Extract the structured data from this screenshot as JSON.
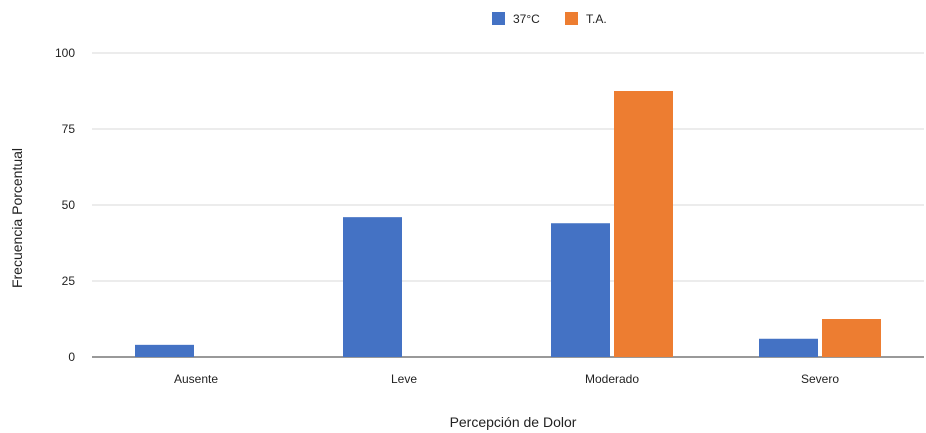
{
  "chart_data": {
    "type": "bar",
    "title": "",
    "xlabel": "Percepción de Dolor",
    "ylabel": "Frecuencia Porcentual",
    "categories": [
      "Ausente",
      "Leve",
      "Moderado",
      "Severo"
    ],
    "series": [
      {
        "name": "37°C",
        "values": [
          4,
          46,
          44,
          6
        ],
        "color": "#4472c4"
      },
      {
        "name": "T.A.",
        "values": [
          0,
          0,
          87.5,
          12.5
        ],
        "color": "#ed7d31"
      }
    ],
    "ylim": [
      0,
      100
    ],
    "yticks": [
      "0",
      "25",
      "50",
      "75",
      "100"
    ],
    "grid": true,
    "legend_position": "top-center"
  }
}
